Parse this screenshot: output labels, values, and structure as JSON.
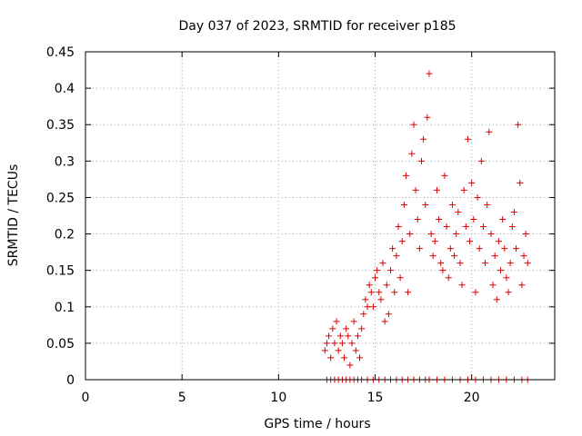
{
  "chart_data": {
    "type": "scatter",
    "title": "Day 037 of 2023, SRMTID for receiver p185",
    "xlabel": "GPS time / hours",
    "ylabel": "SRMTID / TECUs",
    "xlim": [
      0,
      24.3
    ],
    "ylim": [
      0,
      0.45
    ],
    "xticks": [
      0,
      5,
      10,
      15,
      20
    ],
    "yticks": [
      0,
      0.05,
      0.1,
      0.15,
      0.2,
      0.25,
      0.3,
      0.35,
      0.4,
      0.45
    ],
    "xtick_labels": [
      "0",
      "5",
      "10",
      "15",
      "20"
    ],
    "ytick_labels": [
      "0",
      "0.05",
      "0.1",
      "0.15",
      "0.2",
      "0.25",
      "0.3",
      "0.35",
      "0.4",
      "0.45"
    ],
    "grid": true,
    "marker": "+",
    "marker_color": "#e00000",
    "series": [
      {
        "name": "SRMTID",
        "x": [
          12.4,
          12.5,
          12.6,
          12.7,
          12.8,
          12.9,
          13.0,
          13.1,
          13.2,
          13.3,
          13.4,
          13.5,
          13.6,
          13.7,
          13.8,
          13.9,
          14.0,
          14.1,
          14.2,
          14.3,
          14.4,
          14.5,
          14.6,
          14.7,
          14.8,
          14.9,
          15.0,
          15.1,
          15.2,
          15.3,
          15.4,
          15.5,
          15.6,
          15.7,
          15.8,
          15.9,
          16.0,
          16.1,
          16.2,
          16.3,
          16.4,
          16.5,
          16.6,
          16.7,
          16.8,
          16.9,
          17.0,
          17.1,
          17.2,
          17.3,
          17.4,
          17.5,
          17.6,
          17.7,
          17.8,
          17.9,
          18.0,
          18.1,
          18.2,
          18.3,
          18.4,
          18.5,
          18.6,
          18.7,
          18.8,
          18.9,
          19.0,
          19.1,
          19.2,
          19.3,
          19.4,
          19.5,
          19.6,
          19.7,
          19.8,
          19.9,
          20.0,
          20.1,
          20.2,
          20.3,
          20.4,
          20.5,
          20.6,
          20.7,
          20.8,
          20.9,
          21.0,
          21.1,
          21.2,
          21.3,
          21.4,
          21.5,
          21.6,
          21.7,
          21.8,
          21.9,
          22.0,
          22.1,
          22.2,
          22.3,
          22.4,
          22.5,
          22.6,
          22.7,
          22.8,
          22.9,
          12.5,
          12.7,
          12.9,
          13.1,
          13.3,
          13.5,
          13.7,
          13.9,
          14.1,
          14.3,
          14.6,
          14.9,
          15.2,
          15.5,
          15.8,
          16.1,
          16.4,
          16.7,
          17.0,
          17.3,
          17.6,
          17.8,
          18.2,
          18.6,
          19.0,
          19.4,
          19.8,
          20.2,
          20.6,
          21.0,
          21.4,
          21.8,
          22.2,
          22.6,
          22.9
        ],
        "y": [
          0.04,
          0.05,
          0.06,
          0.03,
          0.07,
          0.05,
          0.08,
          0.04,
          0.06,
          0.05,
          0.03,
          0.07,
          0.06,
          0.02,
          0.05,
          0.08,
          0.04,
          0.06,
          0.03,
          0.07,
          0.09,
          0.11,
          0.1,
          0.13,
          0.12,
          0.1,
          0.14,
          0.15,
          0.12,
          0.11,
          0.16,
          0.08,
          0.13,
          0.09,
          0.15,
          0.18,
          0.12,
          0.17,
          0.21,
          0.14,
          0.19,
          0.24,
          0.28,
          0.12,
          0.2,
          0.31,
          0.35,
          0.26,
          0.22,
          0.18,
          0.3,
          0.33,
          0.24,
          0.36,
          0.42,
          0.2,
          0.17,
          0.19,
          0.26,
          0.22,
          0.16,
          0.15,
          0.28,
          0.21,
          0.14,
          0.18,
          0.24,
          0.17,
          0.2,
          0.23,
          0.16,
          0.13,
          0.26,
          0.21,
          0.33,
          0.19,
          0.27,
          0.22,
          0.12,
          0.25,
          0.18,
          0.3,
          0.21,
          0.16,
          0.24,
          0.34,
          0.2,
          0.13,
          0.17,
          0.11,
          0.19,
          0.15,
          0.22,
          0.18,
          0.14,
          0.12,
          0.16,
          0.21,
          0.23,
          0.18,
          0.35,
          0.27,
          0.13,
          0.17,
          0.2,
          0.16,
          0.0,
          0.0,
          0.0,
          0.0,
          0.0,
          0.0,
          0.0,
          0.0,
          0.0,
          0.0,
          0.0,
          0.0,
          0.0,
          0.0,
          0.0,
          0.0,
          0.0,
          0.0,
          0.0,
          0.0,
          0.0,
          0.0,
          0.0,
          0.0,
          0.0,
          0.0,
          0.0,
          0.0,
          0.0,
          0.0,
          0.0,
          0.0,
          0.0,
          0.0,
          0.0
        ]
      }
    ]
  }
}
